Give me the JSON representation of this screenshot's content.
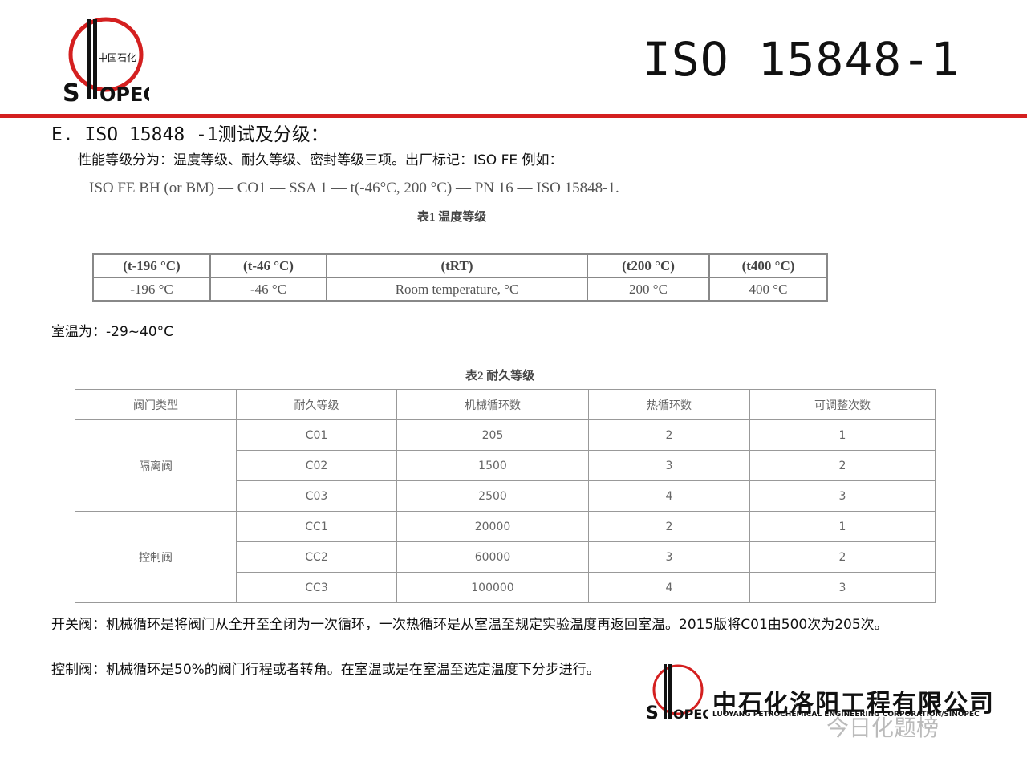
{
  "header": {
    "title": "ISO 15848-1",
    "logo_text": "中国石化 SINOPEC",
    "accent": "#d42020"
  },
  "section_heading": "E. ISO 15848 -1测试及分级：",
  "performance_text": "性能等级分为：温度等级、耐久等级、密封等级三项。出厂标记：ISO FE  例如：",
  "example_marking": "ISO FE BH (or BM) — CO1 — SSA 1 — t(-46°C, 200 °C) — PN 16 — ISO 15848-1.",
  "table1": {
    "caption": "表1 温度等级",
    "headers": [
      "(t-196 °C)",
      "(t-46 °C)",
      "(tRT)",
      "(t200 °C)",
      "(t400 °C)"
    ],
    "values": [
      "-196 °C",
      "-46 °C",
      "Room temperature, °C",
      "200 °C",
      "400 °C"
    ]
  },
  "room_temp": "室温为：-29~40°C",
  "table2": {
    "caption": "表2 耐久等级",
    "headers": [
      "阀门类型",
      "耐久等级",
      "机械循环数",
      "热循环数",
      "可调整次数"
    ],
    "groups": [
      {
        "type": "隔离阀",
        "rows": [
          [
            "C01",
            "205",
            "2",
            "1"
          ],
          [
            "C02",
            "1500",
            "3",
            "2"
          ],
          [
            "C03",
            "2500",
            "4",
            "3"
          ]
        ]
      },
      {
        "type": "控制阀",
        "rows": [
          [
            "CC1",
            "20000",
            "2",
            "1"
          ],
          [
            "CC2",
            "60000",
            "3",
            "2"
          ],
          [
            "CC3",
            "100000",
            "4",
            "3"
          ]
        ]
      }
    ]
  },
  "notes": [
    "开关阀：机械循环是将阀门从全开至全闭为一次循环，一次热循环是从室温至规定实验温度再返回室温。2015版将C01由500次为205次。",
    "控制阀：机械循环是50%的阀门行程或者转角。在室温或是在室温至选定温度下分步进行。"
  ],
  "footer": {
    "company": "中石化洛阳工程有限公司",
    "company_en": "LUOYANG PETROCHEMICAL ENGINEERING CORPORATION/SINOPEC",
    "watermark": "今日化题榜"
  }
}
